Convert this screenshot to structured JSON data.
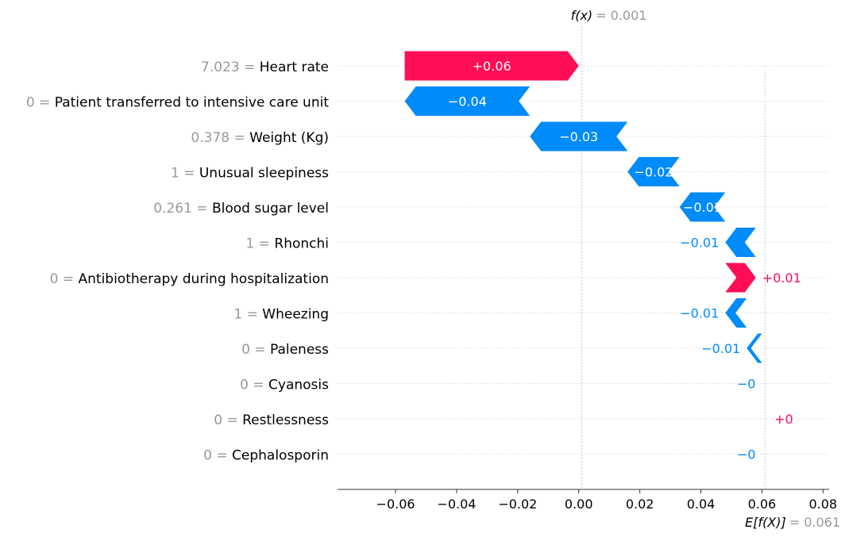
{
  "chart_data": {
    "type": "waterfall",
    "title": "",
    "xlabel": "",
    "ylabel": "",
    "fx": {
      "label": "f(x)",
      "value": 0.001,
      "value_text": "= 0.001"
    },
    "expected": {
      "label": "E[f(X)]",
      "value": 0.061,
      "value_text": "= 0.061"
    },
    "xlim": [
      -0.079,
      0.082
    ],
    "xticks": [
      -0.06,
      -0.04,
      -0.02,
      0.0,
      0.02,
      0.04,
      0.06,
      0.08
    ],
    "xtick_labels": [
      "−0.06",
      "−0.04",
      "−0.02",
      "0.00",
      "0.02",
      "0.04",
      "0.06",
      "0.08"
    ],
    "grid": "dotted horizontal lines",
    "colors": {
      "positive": "#ff0d57",
      "negative": "#008bfb",
      "feature_value": "#999999",
      "feature_name": "#000000"
    },
    "features": [
      {
        "value_text": "7.023",
        "name": "Heart rate",
        "start": 0.0,
        "end": -0.057,
        "label": "+0.06"
      },
      {
        "value_text": "0",
        "name": "Patient transferred to intensive care unit",
        "start": -0.057,
        "end": -0.016,
        "label": "−0.04"
      },
      {
        "value_text": "0.378",
        "name": "Weight (Kg)",
        "start": -0.016,
        "end": 0.016,
        "label": "−0.03"
      },
      {
        "value_text": "1",
        "name": "Unusual sleepiness",
        "start": 0.016,
        "end": 0.033,
        "label": "−0.02"
      },
      {
        "value_text": "0.261",
        "name": "Blood sugar level",
        "start": 0.033,
        "end": 0.048,
        "label": "−0.01"
      },
      {
        "value_text": "1",
        "name": "Rhonchi",
        "start": 0.048,
        "end": 0.058,
        "label": "−0.01"
      },
      {
        "value_text": "0",
        "name": "Antibiotherapy during hospitalization",
        "start": 0.058,
        "end": 0.048,
        "label": "+0.01"
      },
      {
        "value_text": "1",
        "name": "Wheezing",
        "start": 0.048,
        "end": 0.055,
        "label": "−0.01"
      },
      {
        "value_text": "0",
        "name": "Paleness",
        "start": 0.055,
        "end": 0.06,
        "label": "−0.01"
      },
      {
        "value_text": "0",
        "name": "Cyanosis",
        "start": 0.06,
        "end": 0.062,
        "label": "−0"
      },
      {
        "value_text": "0",
        "name": "Restlessness",
        "start": 0.062,
        "end": 0.06,
        "label": "+0"
      },
      {
        "value_text": "0",
        "name": "Cephalosporin",
        "start": 0.06,
        "end": 0.061,
        "label": "−0"
      }
    ]
  }
}
